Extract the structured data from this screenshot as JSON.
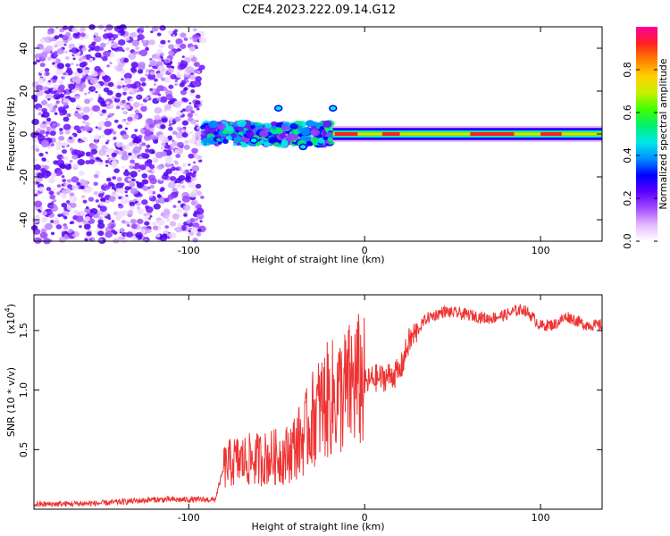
{
  "title": "C2E4.2023.222.09.14.G12",
  "chart_data": [
    {
      "type": "heatmap",
      "xlabel": "Height of straight line (km)",
      "ylabel": "Frequency (Hz)",
      "xlim": [
        -188,
        135
      ],
      "ylim": [
        -50,
        50
      ],
      "xticks": [
        -100,
        0,
        100
      ],
      "yticks": [
        -40,
        -20,
        0,
        20,
        40
      ],
      "colorbar": {
        "label": "Normalized spectral amplitude",
        "range": [
          0,
          1
        ],
        "ticks": [
          0.0,
          0.2,
          0.4,
          0.6,
          0.8
        ],
        "colors": [
          "#ffffff",
          "#e4b8ff",
          "#a24cff",
          "#5a00ff",
          "#0000ff",
          "#0090ff",
          "#00e8e8",
          "#00f070",
          "#40ff00",
          "#c8f000",
          "#ffd000",
          "#ff8000",
          "#ff2020",
          "#ff00a0"
        ]
      },
      "regions": [
        {
          "x": [
            -188,
            -92
          ],
          "freq": [
            -50,
            50
          ],
          "description": "broadband noise"
        },
        {
          "x": [
            -92,
            -18
          ],
          "freq_center": 0,
          "freq_width": 10
        },
        {
          "x": [
            -18,
            135
          ],
          "freq_center": 0,
          "freq_width": 4
        }
      ]
    },
    {
      "type": "line",
      "xlabel": "Height of straight line (km)",
      "ylabel": "SNR (10 * v/v)",
      "multiplier": "(x10",
      "multiplier_exp": "4",
      "multiplier_close": ")",
      "xlim": [
        -188,
        135
      ],
      "ylim": [
        0,
        18000
      ],
      "xticks": [
        -100,
        0,
        100
      ],
      "yticks": [
        0.5,
        1.0,
        1.5
      ],
      "ytick_labels": [
        "0.5",
        "1.0",
        "1.5"
      ],
      "color": "#ee3333",
      "series": [
        {
          "x": [
            -188,
            -150,
            -120,
            -85,
            -80,
            -75,
            -60,
            -45,
            -35,
            -28,
            -22,
            -15,
            -10,
            -5,
            0,
            5,
            10,
            20,
            25,
            35,
            45,
            60,
            70,
            80,
            85,
            90,
            95,
            100,
            108,
            115,
            125,
            135
          ],
          "y": [
            400,
            500,
            800,
            800,
            3500,
            4000,
            4200,
            4500,
            6000,
            8000,
            9000,
            9500,
            10000,
            10800,
            10500,
            11000,
            11000,
            11500,
            14000,
            16000,
            16600,
            16300,
            16000,
            16300,
            16600,
            16800,
            16200,
            15400,
            15500,
            16200,
            15500,
            15400
          ]
        }
      ]
    }
  ]
}
